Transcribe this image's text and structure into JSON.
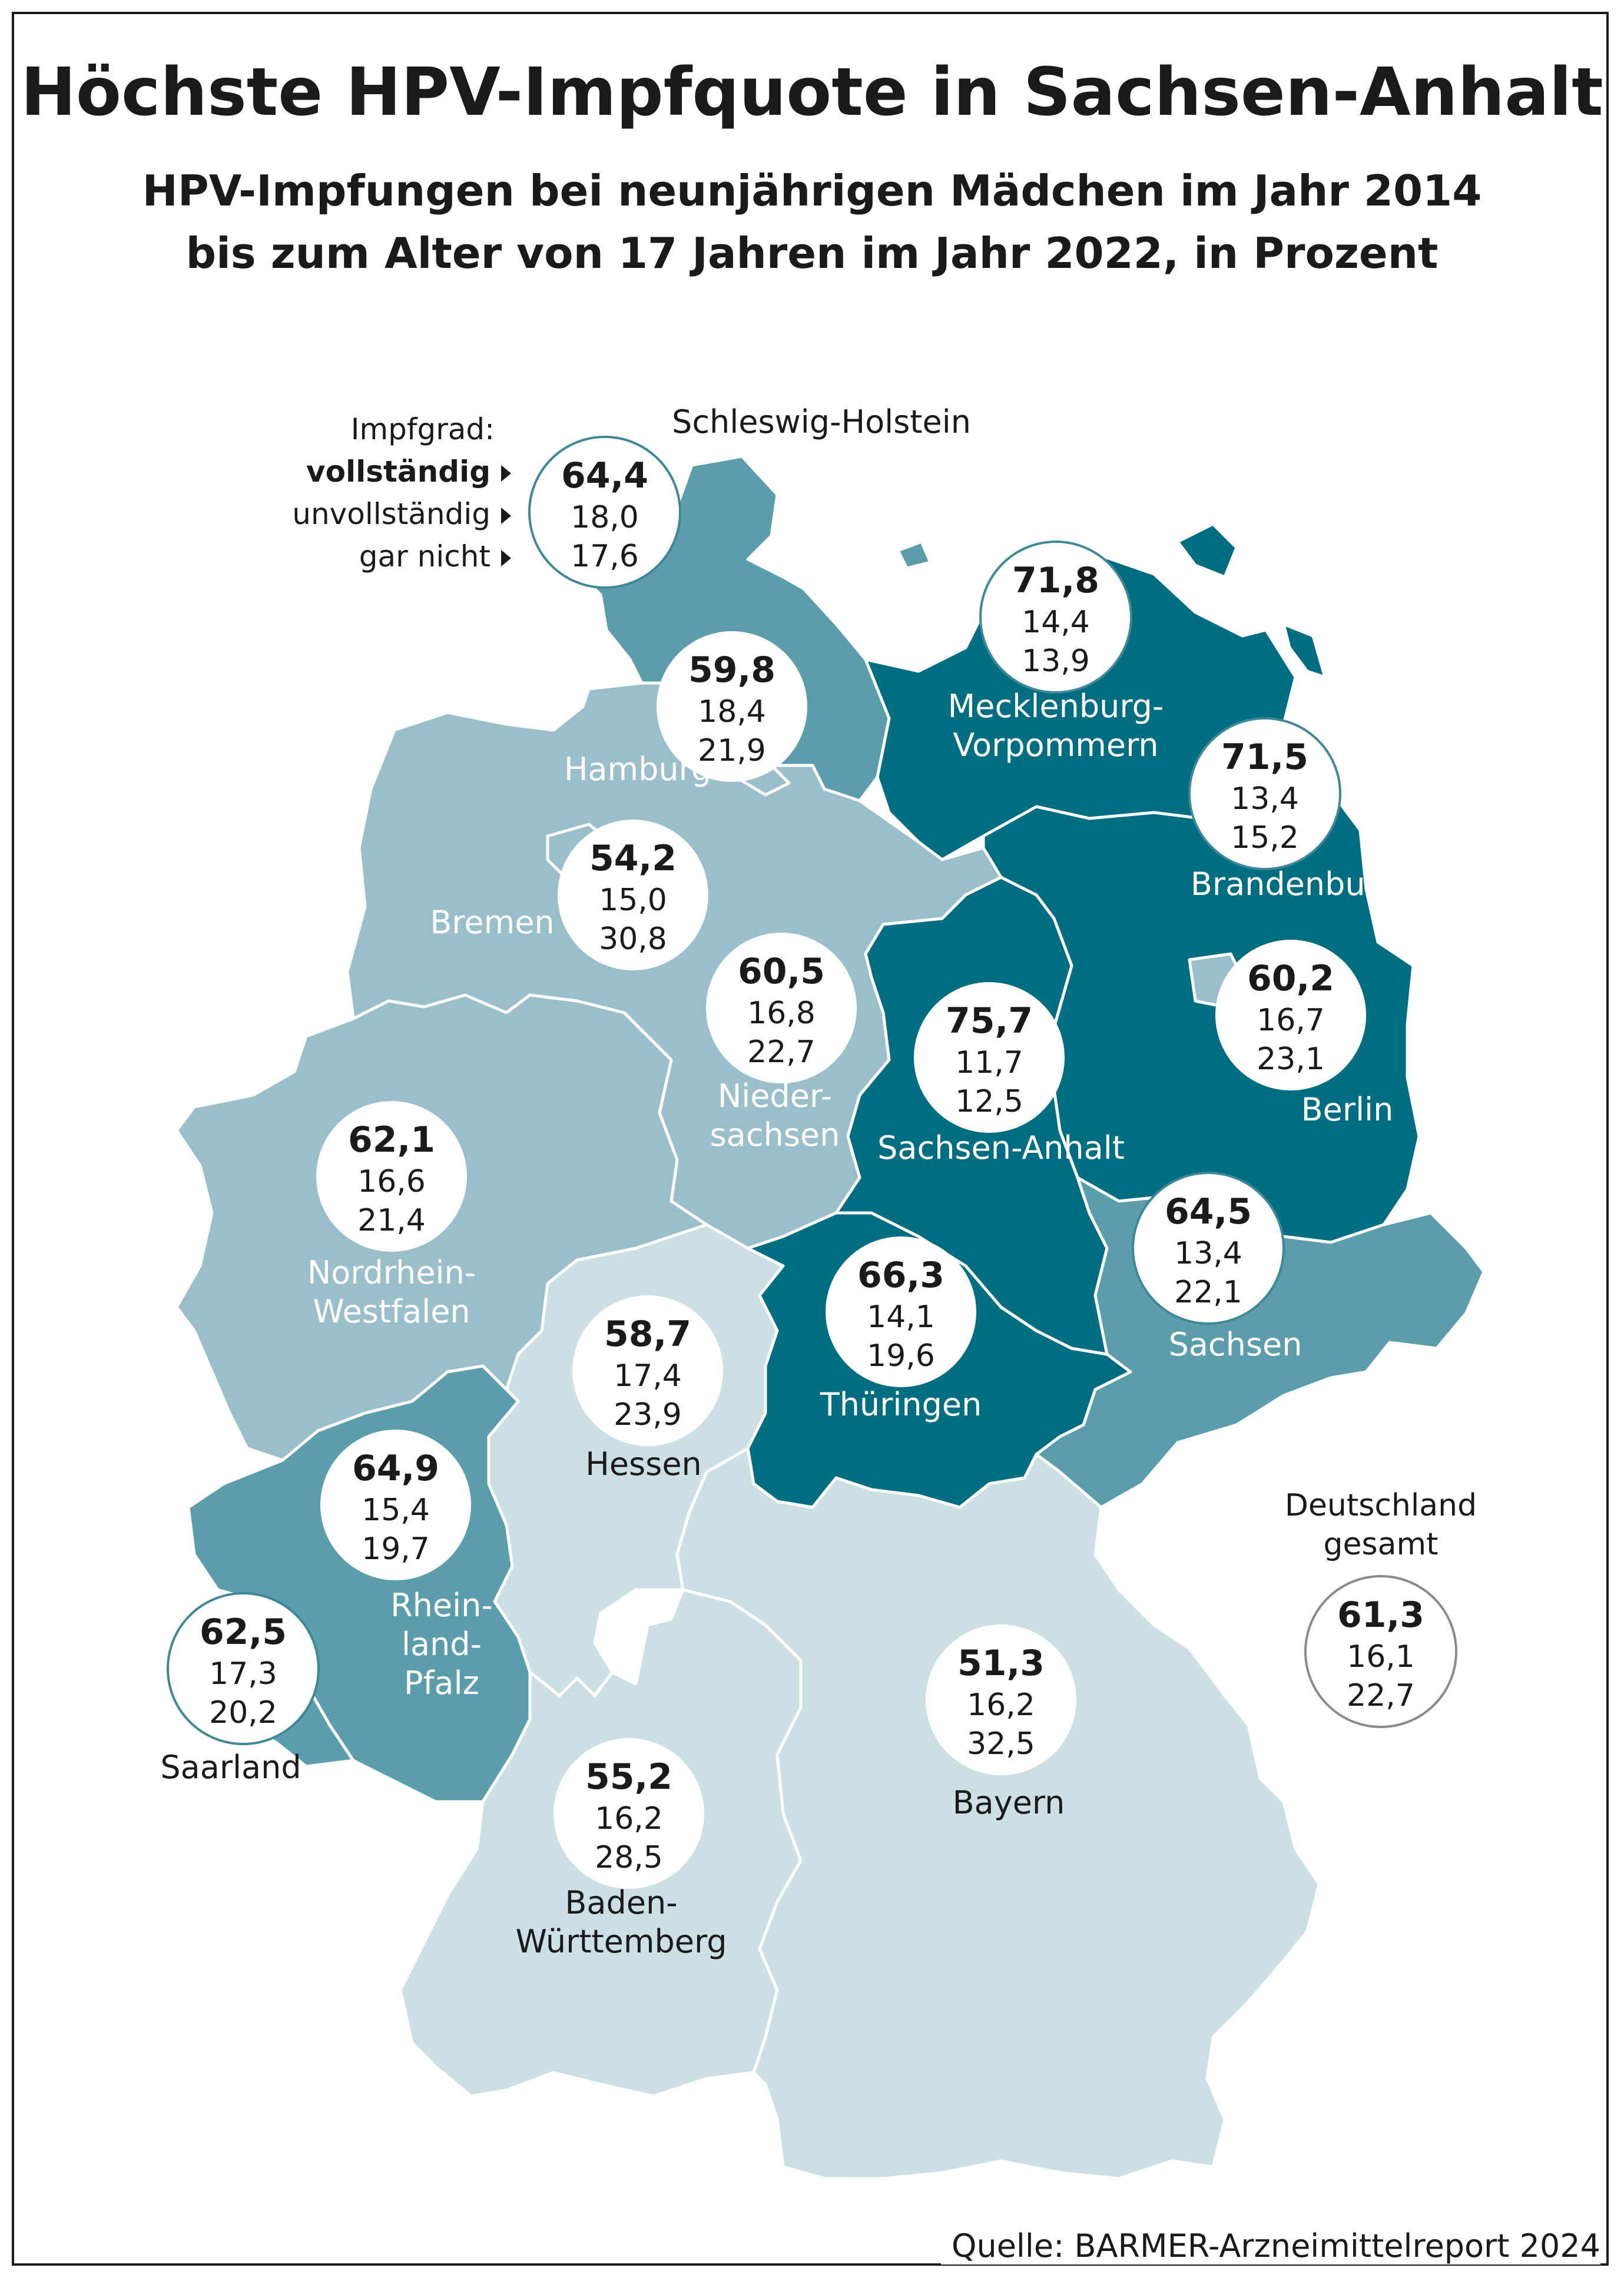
{
  "title": "Höchste HPV-Impfquote in Sachsen-Anhalt",
  "subtitle_line1": "HPV-Impfungen bei neunjährigen Mädchen im Jahr 2014",
  "subtitle_line2": "bis zum Alter von 17 Jahren im Jahr 2022, in Prozent",
  "legend": {
    "heading": "Impfgrad:",
    "vollstaendig": "vollständig",
    "unvollstaendig": "unvollständig",
    "gar_nicht": "gar nicht"
  },
  "colors": {
    "darkest": "#006e80",
    "dark": "#5b9dab",
    "medium": "#9abfca",
    "light": "#ccdfe5",
    "border": "#ffffff",
    "circle_ring": "#3d8796",
    "circle_ring_national": "#8a8a8a"
  },
  "regions": [
    {
      "name": "Schleswig-Holstein",
      "full": "64,4",
      "partial": "18,0",
      "none": "17,6",
      "color": "dark"
    },
    {
      "name": "Hamburg",
      "full": "59,8",
      "partial": "18,4",
      "none": "21,9",
      "color": "medium"
    },
    {
      "name": "Mecklenburg-Vorpommern",
      "name_line1": "Mecklenburg-",
      "name_line2": "Vorpommern",
      "full": "71,8",
      "partial": "14,4",
      "none": "13,9",
      "color": "darkest"
    },
    {
      "name": "Brandenburg",
      "full": "71,5",
      "partial": "13,4",
      "none": "15,2",
      "color": "darkest"
    },
    {
      "name": "Bremen",
      "full": "54,2",
      "partial": "15,0",
      "none": "30,8",
      "color": "medium"
    },
    {
      "name": "Niedersachsen",
      "name_line1": "Nieder-",
      "name_line2": "sachsen",
      "full": "60,5",
      "partial": "16,8",
      "none": "22,7",
      "color": "medium"
    },
    {
      "name": "Sachsen-Anhalt",
      "full": "75,7",
      "partial": "11,7",
      "none": "12,5",
      "color": "darkest"
    },
    {
      "name": "Berlin",
      "full": "60,2",
      "partial": "16,7",
      "none": "23,1",
      "color": "medium"
    },
    {
      "name": "Nordrhein-Westfalen",
      "name_line1": "Nordrhein-",
      "name_line2": "Westfalen",
      "full": "62,1",
      "partial": "16,6",
      "none": "21,4",
      "color": "medium"
    },
    {
      "name": "Sachsen",
      "full": "64,5",
      "partial": "13,4",
      "none": "22,1",
      "color": "dark"
    },
    {
      "name": "Thüringen",
      "full": "66,3",
      "partial": "14,1",
      "none": "19,6",
      "color": "darkest"
    },
    {
      "name": "Hessen",
      "full": "58,7",
      "partial": "17,4",
      "none": "23,9",
      "color": "light"
    },
    {
      "name": "Rheinland-Pfalz",
      "name_line1": "Rhein-",
      "name_line2": "land-",
      "name_line3": "Pfalz",
      "full": "64,9",
      "partial": "15,4",
      "none": "19,7",
      "color": "dark"
    },
    {
      "name": "Saarland",
      "full": "62,5",
      "partial": "17,3",
      "none": "20,2",
      "color": "dark"
    },
    {
      "name": "Bayern",
      "full": "51,3",
      "partial": "16,2",
      "none": "32,5",
      "color": "light"
    },
    {
      "name": "Baden-Württemberg",
      "name_line1": "Baden-",
      "name_line2": "Württemberg",
      "full": "55,2",
      "partial": "16,2",
      "none": "28,5",
      "color": "light"
    }
  ],
  "national": {
    "name_line1": "Deutschland",
    "name_line2": "gesamt",
    "full": "61,3",
    "partial": "16,1",
    "none": "22,7"
  },
  "source": "Quelle: BARMER-Arzneimittelreport 2024"
}
